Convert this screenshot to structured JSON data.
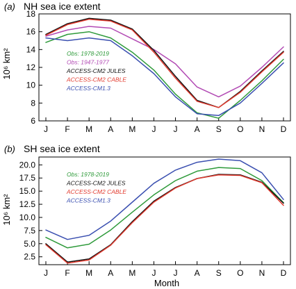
{
  "colors": {
    "obs_1978_2019": "#2e9a3a",
    "obs_1947_1977": "#b24ab4",
    "jules": "#111111",
    "cable": "#e23a2e",
    "cm13": "#3a4fb0"
  },
  "xlabel": "Month",
  "chart_data": [
    {
      "type": "line",
      "panel": "(a)",
      "title": "NH sea ice extent",
      "ylabel": "10⁶ km²",
      "categories": [
        "J",
        "F",
        "M",
        "A",
        "M",
        "J",
        "J",
        "A",
        "S",
        "O",
        "N",
        "D"
      ],
      "ylim": [
        6,
        18
      ],
      "yticks": [
        6,
        8,
        10,
        12,
        14,
        16,
        18
      ],
      "ytick_labels": [
        "6",
        "8",
        "10",
        "12",
        "14",
        "16",
        "18"
      ],
      "grid": false,
      "legend_position": "center-left",
      "series": [
        {
          "name": "Obs: 1978-2019",
          "color_key": "obs_1978_2019",
          "values": [
            14.8,
            15.7,
            16.0,
            15.3,
            13.7,
            11.7,
            9.0,
            6.9,
            6.3,
            8.3,
            10.5,
            12.9
          ]
        },
        {
          "name": "Obs: 1947-1977",
          "color_key": "obs_1947_1977",
          "values": [
            15.5,
            16.2,
            16.6,
            16.4,
            15.2,
            14.0,
            12.4,
            9.8,
            8.7,
            9.9,
            12.0,
            14.3
          ]
        },
        {
          "name": "ACCESS-CM2 JULES",
          "color_key": "jules",
          "values": [
            15.7,
            16.9,
            17.5,
            17.3,
            16.3,
            13.9,
            11.0,
            8.3,
            7.5,
            9.3,
            11.6,
            13.8
          ]
        },
        {
          "name": "ACCESS-CM2 CABLE",
          "color_key": "cable",
          "values": [
            15.6,
            16.8,
            17.4,
            17.2,
            16.2,
            13.7,
            10.8,
            8.2,
            7.5,
            9.2,
            11.5,
            13.7
          ]
        },
        {
          "name": "ACCESS-CM1.3",
          "color_key": "cm13",
          "values": [
            15.3,
            15.0,
            15.3,
            15.0,
            13.3,
            11.3,
            8.7,
            6.8,
            6.6,
            8.0,
            10.2,
            12.5
          ]
        }
      ]
    },
    {
      "type": "line",
      "panel": "(b)",
      "title": "SH sea ice extent",
      "ylabel": "10⁶ km²",
      "categories": [
        "J",
        "F",
        "M",
        "A",
        "M",
        "J",
        "J",
        "A",
        "S",
        "O",
        "N",
        "D"
      ],
      "ylim": [
        1,
        21.5
      ],
      "yticks": [
        2.5,
        5,
        7.5,
        10,
        12.5,
        15,
        17.5,
        20
      ],
      "ytick_labels": [
        "2.5",
        "5.0",
        "7.5",
        "10.0",
        "12.5",
        "15.0",
        "17.5",
        "20.0"
      ],
      "grid": false,
      "legend_position": "top-left",
      "series": [
        {
          "name": "Obs: 1978-2019",
          "color_key": "obs_1978_2019",
          "values": [
            6.2,
            4.2,
            4.9,
            7.6,
            11.0,
            14.3,
            17.0,
            18.8,
            19.5,
            19.3,
            17.0,
            12.8
          ]
        },
        {
          "name": "ACCESS-CM2 JULES",
          "color_key": "jules",
          "values": [
            5.0,
            1.5,
            2.1,
            4.8,
            9.2,
            13.1,
            15.7,
            17.4,
            18.2,
            18.1,
            16.7,
            12.7
          ]
        },
        {
          "name": "ACCESS-CM2 CABLE",
          "color_key": "cable",
          "values": [
            4.8,
            1.3,
            1.9,
            4.7,
            9.0,
            12.9,
            15.6,
            17.4,
            18.1,
            18.0,
            16.6,
            12.3
          ]
        },
        {
          "name": "ACCESS-CM1.3",
          "color_key": "cm13",
          "values": [
            7.6,
            5.8,
            6.6,
            9.3,
            12.9,
            16.5,
            19.0,
            20.5,
            21.1,
            20.8,
            18.5,
            13.4
          ]
        }
      ]
    }
  ]
}
